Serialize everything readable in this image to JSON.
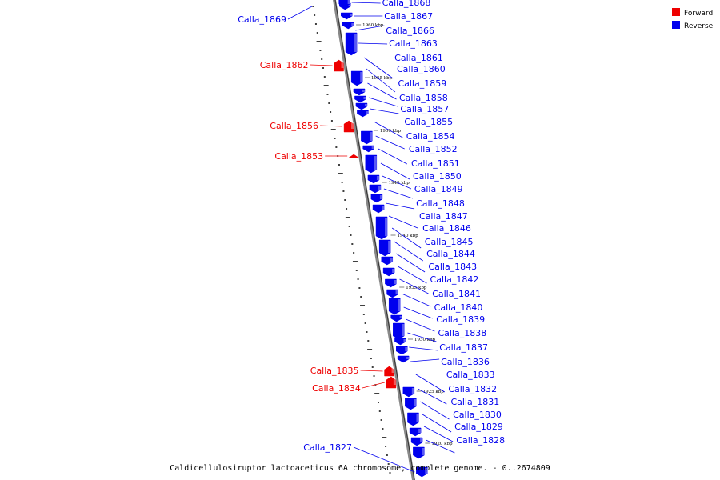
{
  "caption": "Caldicellulosiruptor lactoaceticus 6A chromosome, complete genome. - 0..2674809",
  "colors": {
    "forward": "#ee0000",
    "reverse": "#0000ee",
    "backbone": "#888888",
    "backbone_dark": "#333333"
  },
  "legend": [
    {
      "label": "Forward",
      "color": "#ee0000"
    },
    {
      "label": "Reverse",
      "color": "#0000ee"
    }
  ],
  "kbp_ticks": [
    "1960 kbp",
    "1955 kbp",
    "1950 kbp",
    "1945 kbp",
    "1940 kbp",
    "1935 kbp",
    "1930 kbp",
    "1925 kbp",
    "1920 kbp"
  ],
  "genes": [
    {
      "name": "Calla_1869",
      "strand": "reverse"
    },
    {
      "name": "Calla_1868",
      "strand": "reverse"
    },
    {
      "name": "Calla_1867",
      "strand": "reverse"
    },
    {
      "name": "Calla_1866",
      "strand": "reverse"
    },
    {
      "name": "Calla_1863",
      "strand": "reverse"
    },
    {
      "name": "Calla_1862",
      "strand": "forward"
    },
    {
      "name": "Calla_1861",
      "strand": "reverse"
    },
    {
      "name": "Calla_1860",
      "strand": "reverse"
    },
    {
      "name": "Calla_1859",
      "strand": "reverse"
    },
    {
      "name": "Calla_1858",
      "strand": "reverse"
    },
    {
      "name": "Calla_1857",
      "strand": "reverse"
    },
    {
      "name": "Calla_1856",
      "strand": "forward"
    },
    {
      "name": "Calla_1855",
      "strand": "reverse"
    },
    {
      "name": "Calla_1854",
      "strand": "reverse"
    },
    {
      "name": "Calla_1853",
      "strand": "forward"
    },
    {
      "name": "Calla_1852",
      "strand": "reverse"
    },
    {
      "name": "Calla_1851",
      "strand": "reverse"
    },
    {
      "name": "Calla_1850",
      "strand": "reverse"
    },
    {
      "name": "Calla_1849",
      "strand": "reverse"
    },
    {
      "name": "Calla_1848",
      "strand": "reverse"
    },
    {
      "name": "Calla_1847",
      "strand": "reverse"
    },
    {
      "name": "Calla_1846",
      "strand": "reverse"
    },
    {
      "name": "Calla_1845",
      "strand": "reverse"
    },
    {
      "name": "Calla_1844",
      "strand": "reverse"
    },
    {
      "name": "Calla_1843",
      "strand": "reverse"
    },
    {
      "name": "Calla_1842",
      "strand": "reverse"
    },
    {
      "name": "Calla_1841",
      "strand": "reverse"
    },
    {
      "name": "Calla_1840",
      "strand": "reverse"
    },
    {
      "name": "Calla_1839",
      "strand": "reverse"
    },
    {
      "name": "Calla_1838",
      "strand": "reverse"
    },
    {
      "name": "Calla_1837",
      "strand": "reverse"
    },
    {
      "name": "Calla_1836",
      "strand": "reverse"
    },
    {
      "name": "Calla_1835",
      "strand": "forward"
    },
    {
      "name": "Calla_1834",
      "strand": "forward"
    },
    {
      "name": "Calla_1833",
      "strand": "reverse"
    },
    {
      "name": "Calla_1832",
      "strand": "reverse"
    },
    {
      "name": "Calla_1831",
      "strand": "reverse"
    },
    {
      "name": "Calla_1830",
      "strand": "reverse"
    },
    {
      "name": "Calla_1829",
      "strand": "reverse"
    },
    {
      "name": "Calla_1828",
      "strand": "reverse"
    },
    {
      "name": "Calla_1827",
      "strand": "reverse"
    }
  ]
}
